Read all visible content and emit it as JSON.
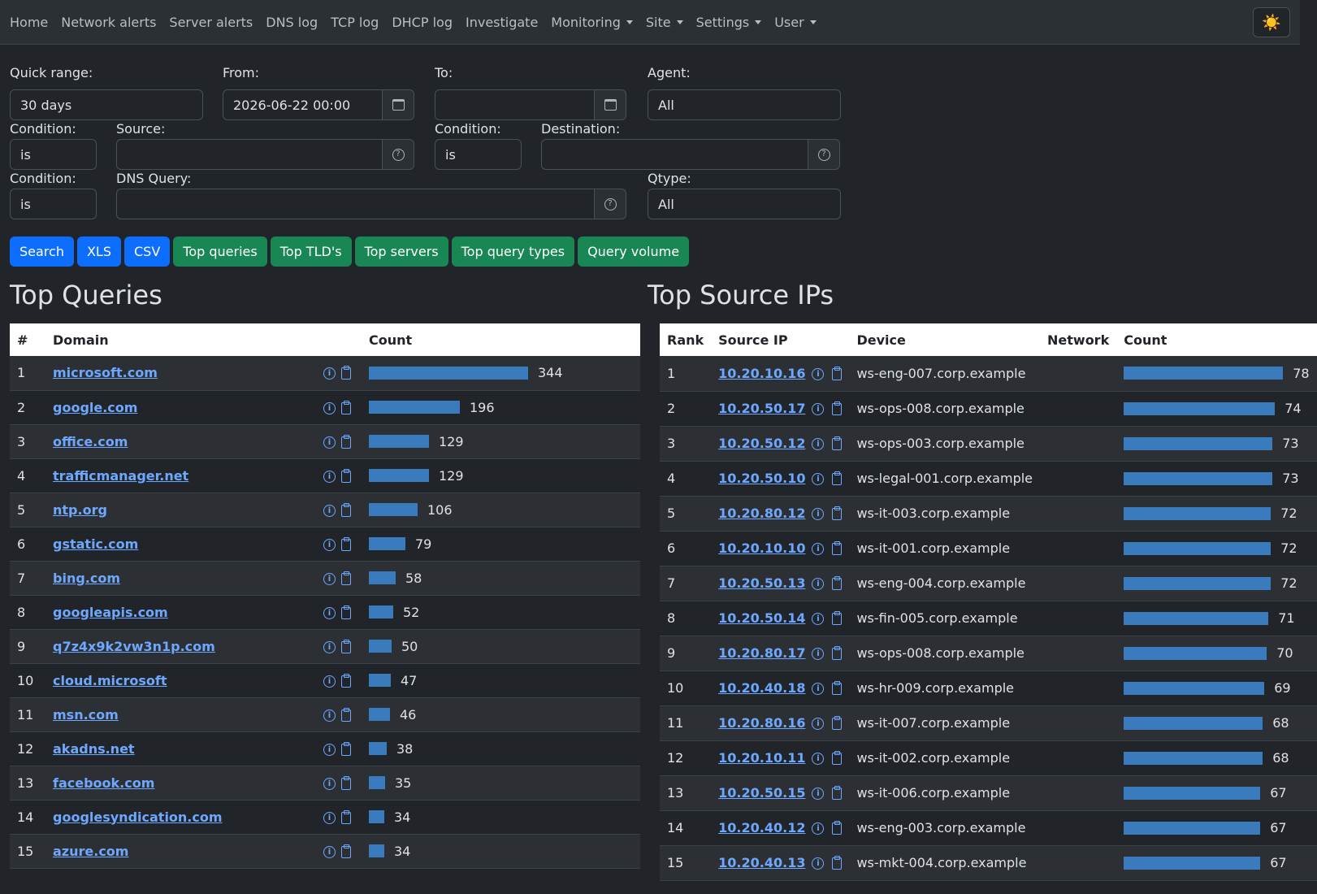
{
  "nav": {
    "items": [
      {
        "label": "Home",
        "dropdown": false
      },
      {
        "label": "Network alerts",
        "dropdown": false
      },
      {
        "label": "Server alerts",
        "dropdown": false
      },
      {
        "label": "DNS log",
        "dropdown": false
      },
      {
        "label": "TCP log",
        "dropdown": false
      },
      {
        "label": "DHCP log",
        "dropdown": false
      },
      {
        "label": "Investigate",
        "dropdown": false
      },
      {
        "label": "Monitoring",
        "dropdown": true
      },
      {
        "label": "Site",
        "dropdown": true
      },
      {
        "label": "Settings",
        "dropdown": true
      },
      {
        "label": "User",
        "dropdown": true
      }
    ],
    "theme_icon": "☀️"
  },
  "form": {
    "quick_range_label": "Quick range:",
    "quick_range_value": "30 days",
    "from_label": "From:",
    "from_value": "2026-06-22 00:00",
    "to_label": "To:",
    "to_value": "",
    "agent_label": "Agent:",
    "agent_value": "All",
    "src_condition_label": "Condition:",
    "src_condition_value": "is",
    "source_label": "Source:",
    "source_value": "",
    "dst_condition_label": "Condition:",
    "dst_condition_value": "is",
    "destination_label": "Destination:",
    "destination_value": "",
    "query_condition_label": "Condition:",
    "query_condition_value": "is",
    "dns_query_label": "DNS Query:",
    "dns_query_value": "",
    "qtype_label": "Qtype:",
    "qtype_value": "All"
  },
  "buttons": {
    "search": "Search",
    "xls": "XLS",
    "csv": "CSV",
    "top_queries": "Top queries",
    "top_tlds": "Top TLD's",
    "top_servers": "Top servers",
    "top_query_types": "Top query types",
    "query_volume": "Query volume"
  },
  "top_queries": {
    "title": "Top Queries",
    "headers": {
      "num": "#",
      "domain": "Domain",
      "count": "Count"
    },
    "max": 344,
    "rows": [
      {
        "rank": "1",
        "domain": "microsoft.com",
        "count": 344
      },
      {
        "rank": "2",
        "domain": "google.com",
        "count": 196
      },
      {
        "rank": "3",
        "domain": "office.com",
        "count": 129
      },
      {
        "rank": "4",
        "domain": "trafficmanager.net",
        "count": 129
      },
      {
        "rank": "5",
        "domain": "ntp.org",
        "count": 106
      },
      {
        "rank": "6",
        "domain": "gstatic.com",
        "count": 79
      },
      {
        "rank": "7",
        "domain": "bing.com",
        "count": 58
      },
      {
        "rank": "8",
        "domain": "googleapis.com",
        "count": 52
      },
      {
        "rank": "9",
        "domain": "q7z4x9k2vw3n1p.com",
        "count": 50
      },
      {
        "rank": "10",
        "domain": "cloud.microsoft",
        "count": 47
      },
      {
        "rank": "11",
        "domain": "msn.com",
        "count": 46
      },
      {
        "rank": "12",
        "domain": "akadns.net",
        "count": 38
      },
      {
        "rank": "13",
        "domain": "facebook.com",
        "count": 35
      },
      {
        "rank": "14",
        "domain": "googlesyndication.com",
        "count": 34
      },
      {
        "rank": "15",
        "domain": "azure.com",
        "count": 34
      }
    ]
  },
  "top_sources": {
    "title": "Top Source IPs",
    "headers": {
      "rank": "Rank",
      "ip": "Source IP",
      "device": "Device",
      "network": "Network",
      "count": "Count"
    },
    "max": 78,
    "rows": [
      {
        "rank": "1",
        "ip": "10.20.10.16",
        "device": "ws-eng-007.corp.example",
        "network": "",
        "count": 78
      },
      {
        "rank": "2",
        "ip": "10.20.50.17",
        "device": "ws-ops-008.corp.example",
        "network": "",
        "count": 74
      },
      {
        "rank": "3",
        "ip": "10.20.50.12",
        "device": "ws-ops-003.corp.example",
        "network": "",
        "count": 73
      },
      {
        "rank": "4",
        "ip": "10.20.50.10",
        "device": "ws-legal-001.corp.example",
        "network": "",
        "count": 73
      },
      {
        "rank": "5",
        "ip": "10.20.80.12",
        "device": "ws-it-003.corp.example",
        "network": "",
        "count": 72
      },
      {
        "rank": "6",
        "ip": "10.20.10.10",
        "device": "ws-it-001.corp.example",
        "network": "",
        "count": 72
      },
      {
        "rank": "7",
        "ip": "10.20.50.13",
        "device": "ws-eng-004.corp.example",
        "network": "",
        "count": 72
      },
      {
        "rank": "8",
        "ip": "10.20.50.14",
        "device": "ws-fin-005.corp.example",
        "network": "",
        "count": 71
      },
      {
        "rank": "9",
        "ip": "10.20.80.17",
        "device": "ws-ops-008.corp.example",
        "network": "",
        "count": 70
      },
      {
        "rank": "10",
        "ip": "10.20.40.18",
        "device": "ws-hr-009.corp.example",
        "network": "",
        "count": 69
      },
      {
        "rank": "11",
        "ip": "10.20.80.16",
        "device": "ws-it-007.corp.example",
        "network": "",
        "count": 68
      },
      {
        "rank": "12",
        "ip": "10.20.10.11",
        "device": "ws-it-002.corp.example",
        "network": "",
        "count": 68
      },
      {
        "rank": "13",
        "ip": "10.20.50.15",
        "device": "ws-it-006.corp.example",
        "network": "",
        "count": 67
      },
      {
        "rank": "14",
        "ip": "10.20.40.12",
        "device": "ws-eng-003.corp.example",
        "network": "",
        "count": 67
      },
      {
        "rank": "15",
        "ip": "10.20.40.13",
        "device": "ws-mkt-004.corp.example",
        "network": "",
        "count": 67
      }
    ]
  },
  "colors": {
    "bar": "#3a7bbd",
    "link": "#6ea8fe",
    "primary": "#0d6efd",
    "success": "#198754"
  }
}
